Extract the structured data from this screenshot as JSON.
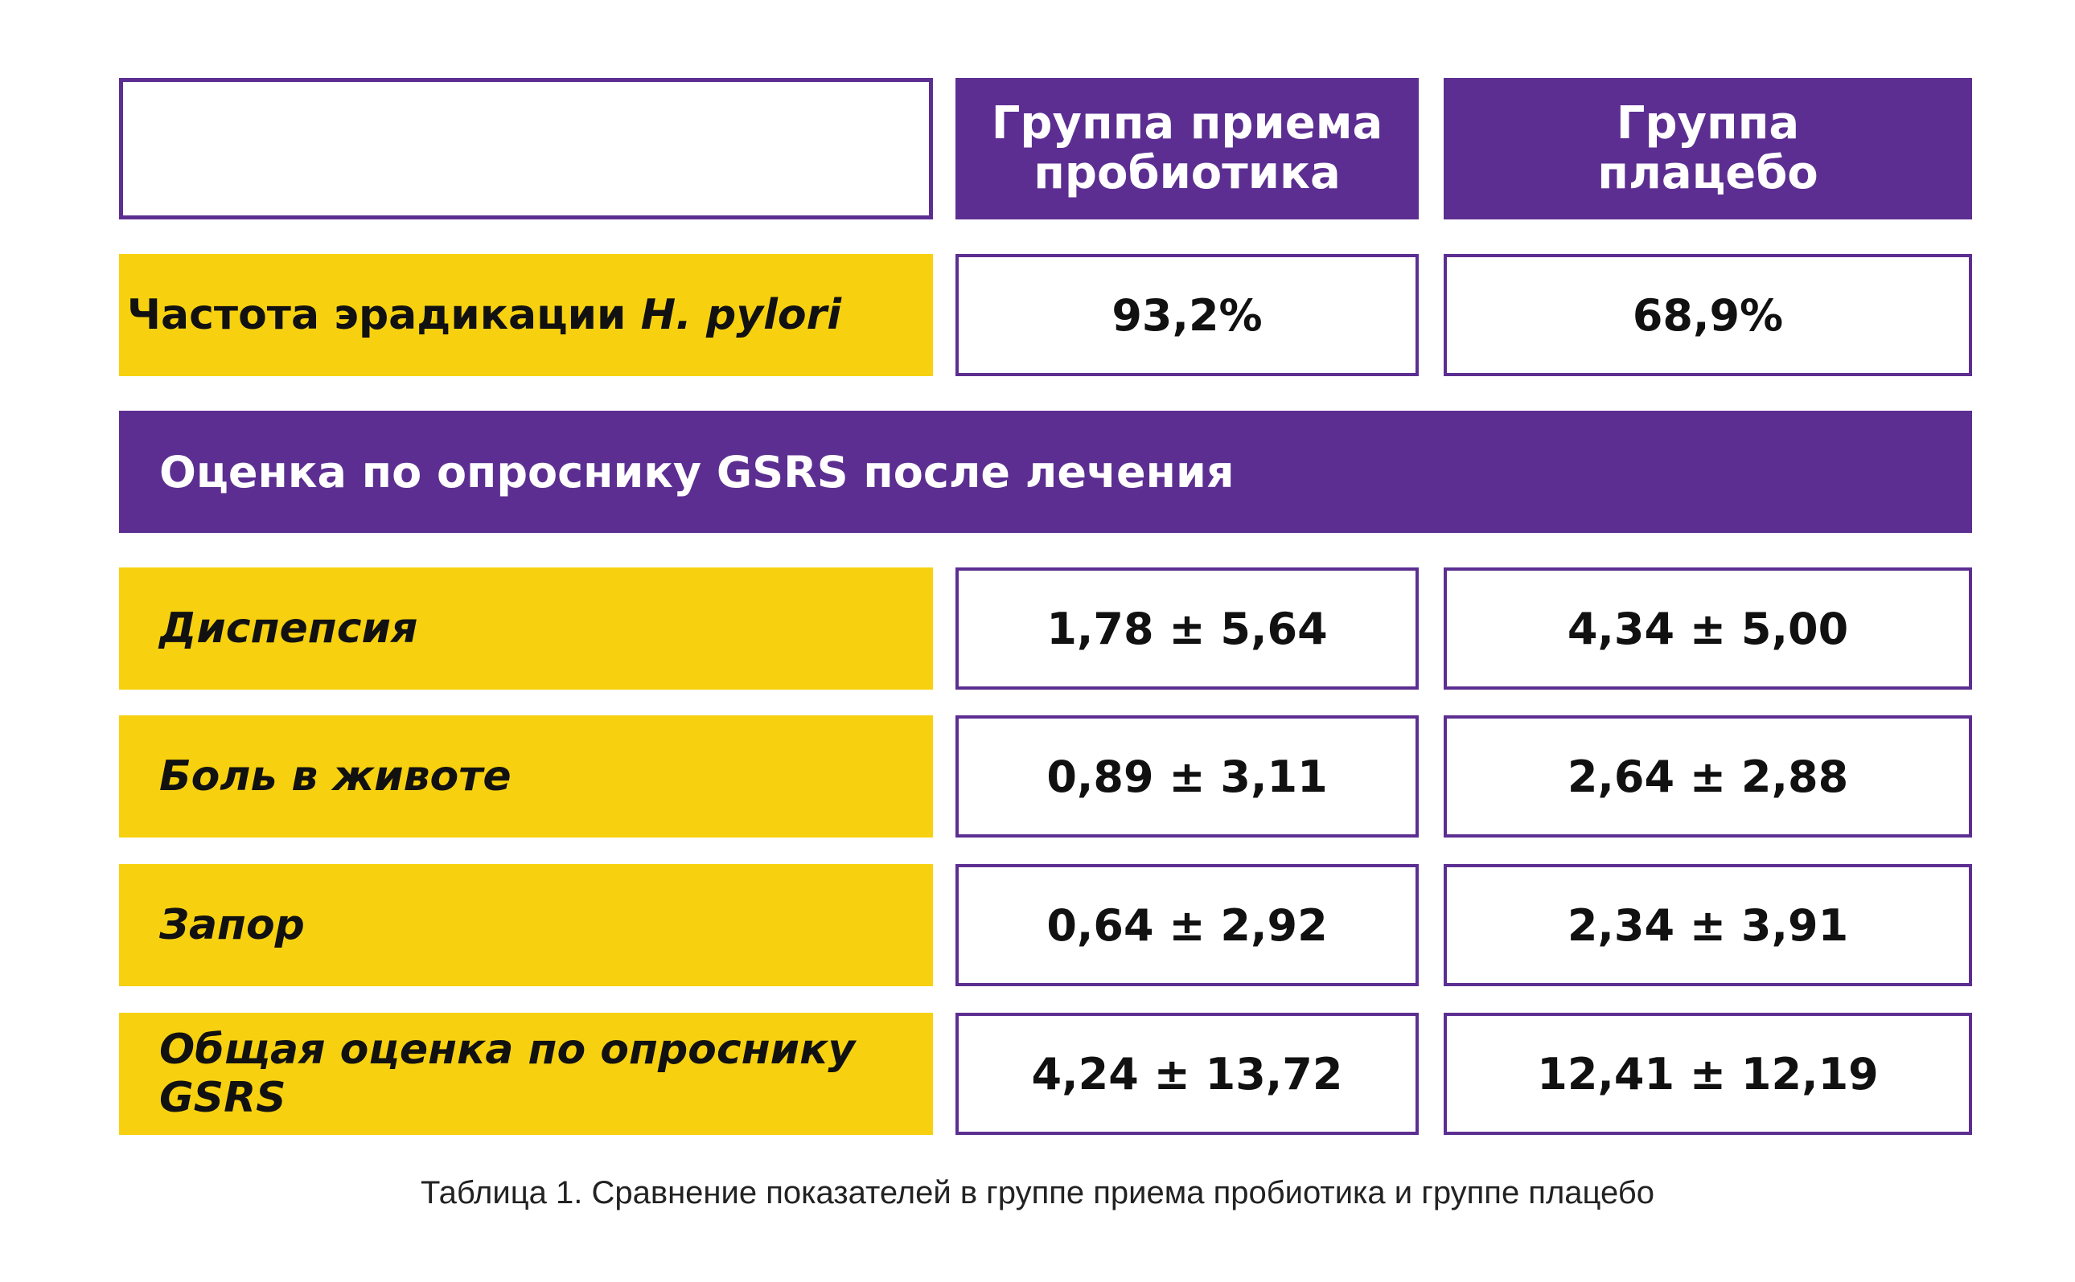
{
  "table": {
    "header": {
      "col1_line1": "Группа приема",
      "col1_line2": "пробиотика",
      "col2_line1": "Группа",
      "col2_line2": "плацебо"
    },
    "eradication": {
      "label_main": "Частота эрадикации ",
      "label_italic": "H. pylori",
      "probiotic": "93,2%",
      "placebo": "68,9%"
    },
    "section_title": "Оценка по опроснику GSRS после лечения",
    "rows": [
      {
        "label": "Диспепсия",
        "probiotic": "1,78 ± 5,64",
        "placebo": "4,34 ± 5,00"
      },
      {
        "label": "Боль в животе",
        "probiotic": "0,89 ± 3,11",
        "placebo": "2,64 ± 2,88"
      },
      {
        "label": "Запор",
        "probiotic": "0,64 ± 2,92",
        "placebo": "2,34 ± 3,91"
      },
      {
        "label": "Общая оценка по опроснику GSRS",
        "probiotic": "4,24 ± 13,72",
        "placebo": "12,41 ± 12,19"
      }
    ],
    "caption": "Таблица 1. Сравнение показателей в группе приема пробиотика и группе плацебо",
    "colors": {
      "purple": "#5c2e91",
      "yellow": "#f7d10f"
    }
  }
}
